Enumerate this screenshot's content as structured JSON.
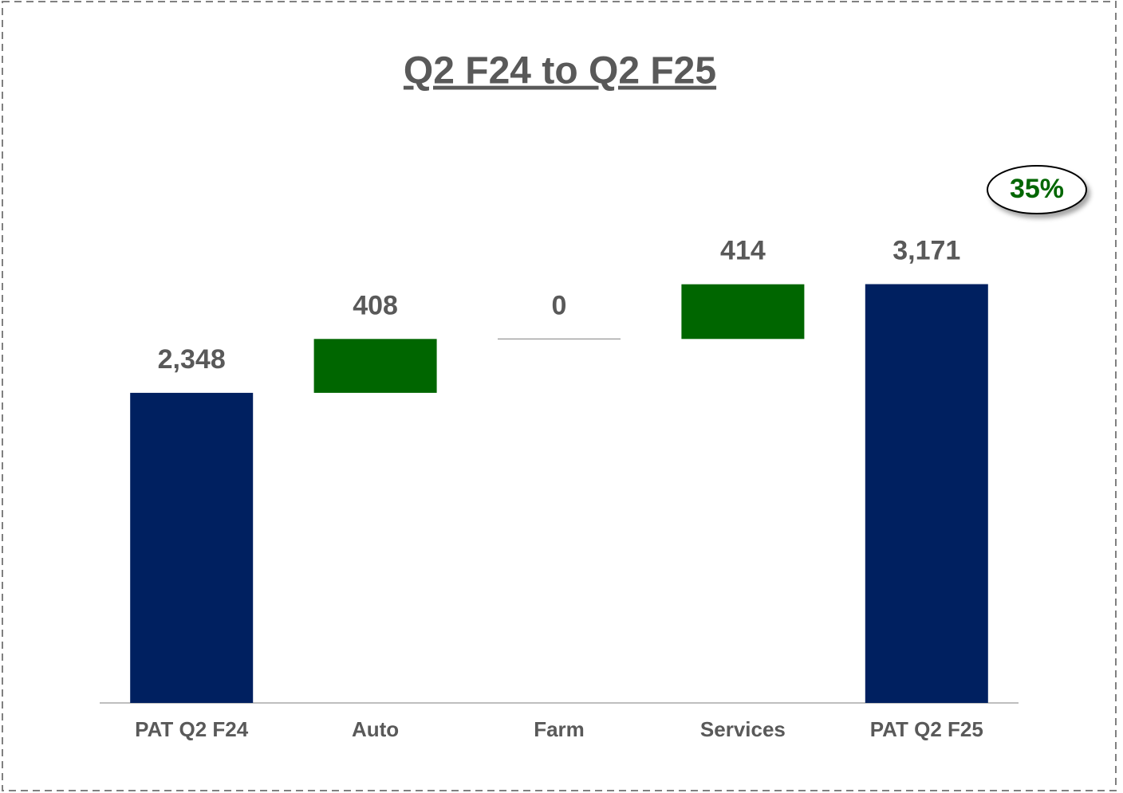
{
  "chart_data": {
    "type": "waterfall",
    "title": "Q2 F24 to Q2 F25",
    "annotation": "35%",
    "categories": [
      "PAT Q2 F24",
      "Auto",
      "Farm",
      "Services",
      "PAT Q2 F25"
    ],
    "values": [
      2348,
      408,
      0,
      414,
      3171
    ],
    "value_labels": [
      "2,348",
      "408",
      "0",
      "414",
      "3,171"
    ],
    "measure": [
      "total",
      "relative",
      "relative",
      "relative",
      "total"
    ],
    "colors": {
      "total": "#002060",
      "relative": "#006600"
    },
    "ylim": [
      0,
      3500
    ]
  }
}
